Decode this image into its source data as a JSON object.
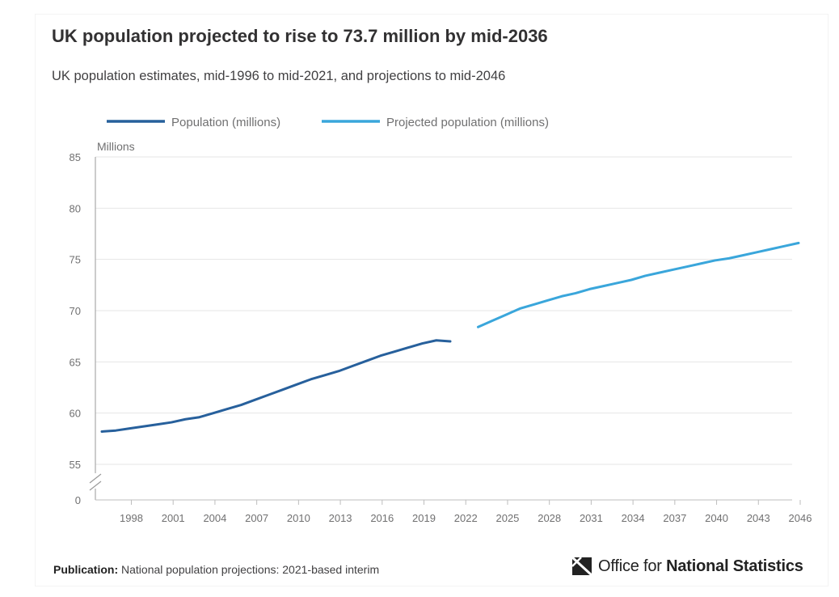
{
  "header": {
    "title": "UK population projected to rise to 73.7 million by mid-2036",
    "subtitle": "UK population estimates, mid-1996 to mid-2021, and projections to mid-2046"
  },
  "footer": {
    "publication_label": "Publication:",
    "publication_text": "National population projections: 2021-based interim",
    "logo_text_regular": "Office for",
    "logo_text_bold": "National Statistics"
  },
  "colors": {
    "population": "#27609c",
    "projected": "#3aa6db",
    "grid": "#e6e6e6",
    "axis_text": "#707071"
  },
  "chart_data": {
    "type": "line",
    "title": "UK population projected to rise to 73.7 million by mid-2036",
    "subtitle": "UK population estimates, mid-1996 to mid-2021, and projections to mid-2046",
    "ylabel": "Millions",
    "xlabel": "",
    "ylim": [
      0,
      85
    ],
    "y_break": true,
    "y_ticks": [
      0,
      55,
      60,
      65,
      70,
      75,
      80,
      85
    ],
    "x_ticks": [
      1998,
      2001,
      2004,
      2007,
      2010,
      2013,
      2016,
      2019,
      2022,
      2025,
      2028,
      2031,
      2034,
      2037,
      2040,
      2043,
      2046
    ],
    "xlim": [
      1996,
      2046
    ],
    "legend_position": "top-left",
    "grid": true,
    "series": [
      {
        "name": "Population (millions)",
        "x": [
          1996,
          1997,
          1998,
          1999,
          2000,
          2001,
          2002,
          2003,
          2004,
          2005,
          2006,
          2007,
          2008,
          2009,
          2010,
          2011,
          2012,
          2013,
          2014,
          2015,
          2016,
          2017,
          2018,
          2019,
          2020,
          2021
        ],
        "values": [
          58.2,
          58.3,
          58.5,
          58.7,
          58.9,
          59.1,
          59.4,
          59.6,
          60.0,
          60.4,
          60.8,
          61.3,
          61.8,
          62.3,
          62.8,
          63.3,
          63.7,
          64.1,
          64.6,
          65.1,
          65.6,
          66.0,
          66.4,
          66.8,
          67.1,
          67.0
        ]
      },
      {
        "name": "Projected population (millions)",
        "x": [
          2023,
          2024,
          2025,
          2026,
          2027,
          2028,
          2029,
          2030,
          2031,
          2032,
          2033,
          2034,
          2035,
          2036,
          2037,
          2038,
          2039,
          2040,
          2041,
          2042,
          2043,
          2044,
          2045,
          2046
        ],
        "values": [
          68.4,
          69.0,
          69.6,
          70.2,
          70.6,
          71.0,
          71.4,
          71.7,
          72.1,
          72.4,
          72.7,
          73.0,
          73.4,
          73.7,
          74.0,
          74.3,
          74.6,
          74.9,
          75.1,
          75.4,
          75.7,
          76.0,
          76.3,
          76.6
        ]
      }
    ]
  }
}
